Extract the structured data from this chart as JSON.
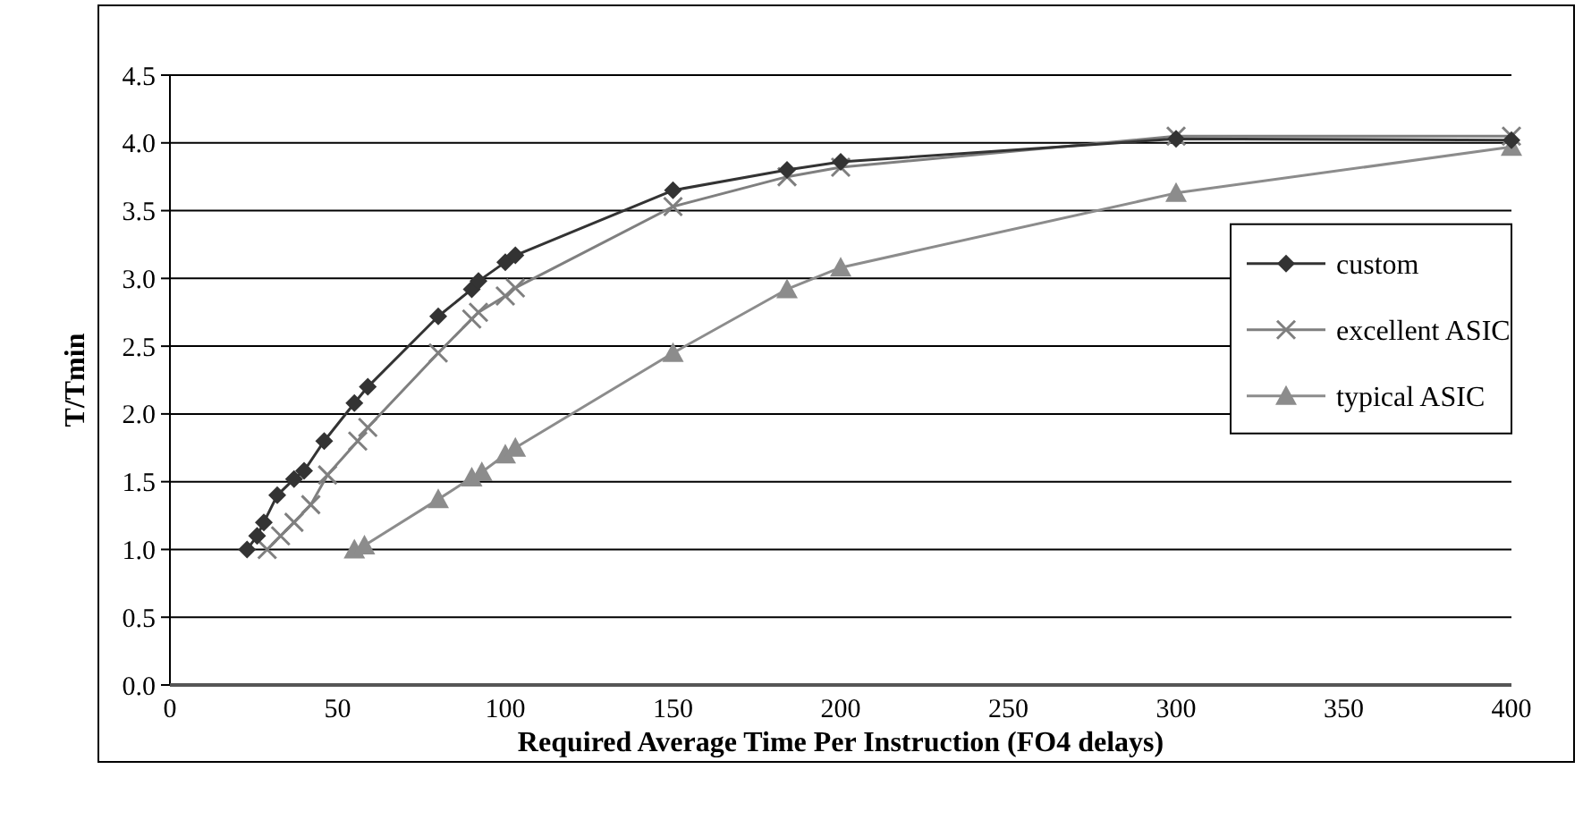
{
  "chart_data": {
    "type": "line",
    "xlabel": "Required Average Time Per Instruction (FO4 delays)",
    "ylabel": "T/Tmin",
    "xlim": [
      0,
      400
    ],
    "xticks": [
      0,
      50,
      100,
      150,
      200,
      250,
      300,
      350,
      400
    ],
    "ylim": [
      0,
      4.5
    ],
    "yticks": [
      {
        "value": 0,
        "label": "0.0"
      },
      {
        "value": 0.5,
        "label": "0.5"
      },
      {
        "value": 1,
        "label": "1.0"
      },
      {
        "value": 1.5,
        "label": "1.5"
      },
      {
        "value": 2,
        "label": "2.0"
      },
      {
        "value": 2.5,
        "label": "2.5"
      },
      {
        "value": 3,
        "label": "3.0"
      },
      {
        "value": 3.5,
        "label": "3.5"
      },
      {
        "value": 4,
        "label": "4.0"
      },
      {
        "value": 4.5,
        "label": "4.5"
      }
    ],
    "grid": "y",
    "legend": "right",
    "line_style": "solid",
    "series": [
      {
        "name": "custom",
        "color": "#333333",
        "marker": "diamond",
        "x": [
          23,
          26,
          28,
          32,
          37,
          40,
          46,
          55,
          59,
          80,
          90,
          92,
          100,
          103,
          150,
          184,
          200,
          300,
          400
        ],
        "values": [
          1.0,
          1.1,
          1.2,
          1.4,
          1.52,
          1.58,
          1.8,
          2.08,
          2.2,
          2.72,
          2.92,
          2.98,
          3.12,
          3.17,
          3.65,
          3.8,
          3.86,
          4.03,
          4.02
        ]
      },
      {
        "name": "excellent ASIC",
        "color": "#7f7f7f",
        "marker": "cross",
        "x": [
          29,
          33,
          37,
          42,
          47,
          56,
          59,
          80,
          90,
          92,
          100,
          103,
          150,
          184,
          200,
          300,
          400
        ],
        "values": [
          1.0,
          1.1,
          1.2,
          1.33,
          1.55,
          1.8,
          1.9,
          2.45,
          2.7,
          2.75,
          2.87,
          2.93,
          3.53,
          3.75,
          3.82,
          4.05,
          4.05
        ]
      },
      {
        "name": "typical ASIC",
        "color": "#8c8c8c",
        "marker": "triangle",
        "x": [
          55,
          58,
          80,
          90,
          93,
          100,
          103,
          150,
          184,
          200,
          300,
          400
        ],
        "values": [
          1.0,
          1.03,
          1.37,
          1.53,
          1.57,
          1.7,
          1.75,
          2.45,
          2.92,
          3.08,
          3.63,
          3.97
        ]
      }
    ]
  }
}
